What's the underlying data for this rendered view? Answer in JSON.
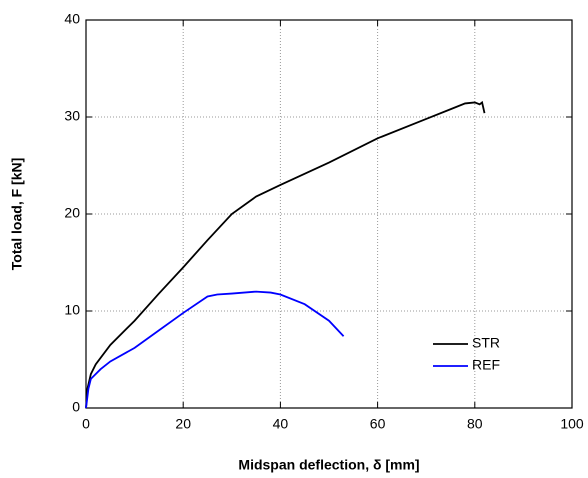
{
  "chart_data": {
    "type": "line",
    "xlabel": "Midspan deflection, δ [mm]",
    "ylabel": "Total load, F [kN]",
    "xlim": [
      0,
      100
    ],
    "xticks": [
      0,
      20,
      40,
      60,
      80,
      100
    ],
    "ylim": [
      0,
      40
    ],
    "yticks": [
      0,
      10,
      20,
      30,
      40
    ],
    "grid": true,
    "legend": "lower right",
    "series": [
      {
        "name": "STR",
        "color": "#000000",
        "x": [
          0,
          0.3,
          1,
          2,
          5,
          10,
          15,
          20,
          25,
          30,
          35,
          40,
          50,
          60,
          70,
          75,
          78,
          80,
          81,
          81.5,
          82
        ],
        "values": [
          0,
          2,
          3.5,
          4.5,
          6.5,
          9,
          11.8,
          14.5,
          17.3,
          20,
          21.8,
          23,
          25.3,
          27.8,
          29.8,
          30.8,
          31.4,
          31.5,
          31.3,
          31.5,
          30.4
        ]
      },
      {
        "name": "REF",
        "color": "#0000ff",
        "x": [
          0,
          0.5,
          1,
          3,
          5,
          10,
          15,
          20,
          25,
          27,
          30,
          35,
          38,
          40,
          45,
          50,
          53
        ],
        "values": [
          0,
          2,
          3,
          4,
          4.8,
          6.2,
          8,
          9.8,
          11.5,
          11.7,
          11.8,
          12,
          11.9,
          11.7,
          10.7,
          9,
          7.4
        ]
      }
    ]
  }
}
